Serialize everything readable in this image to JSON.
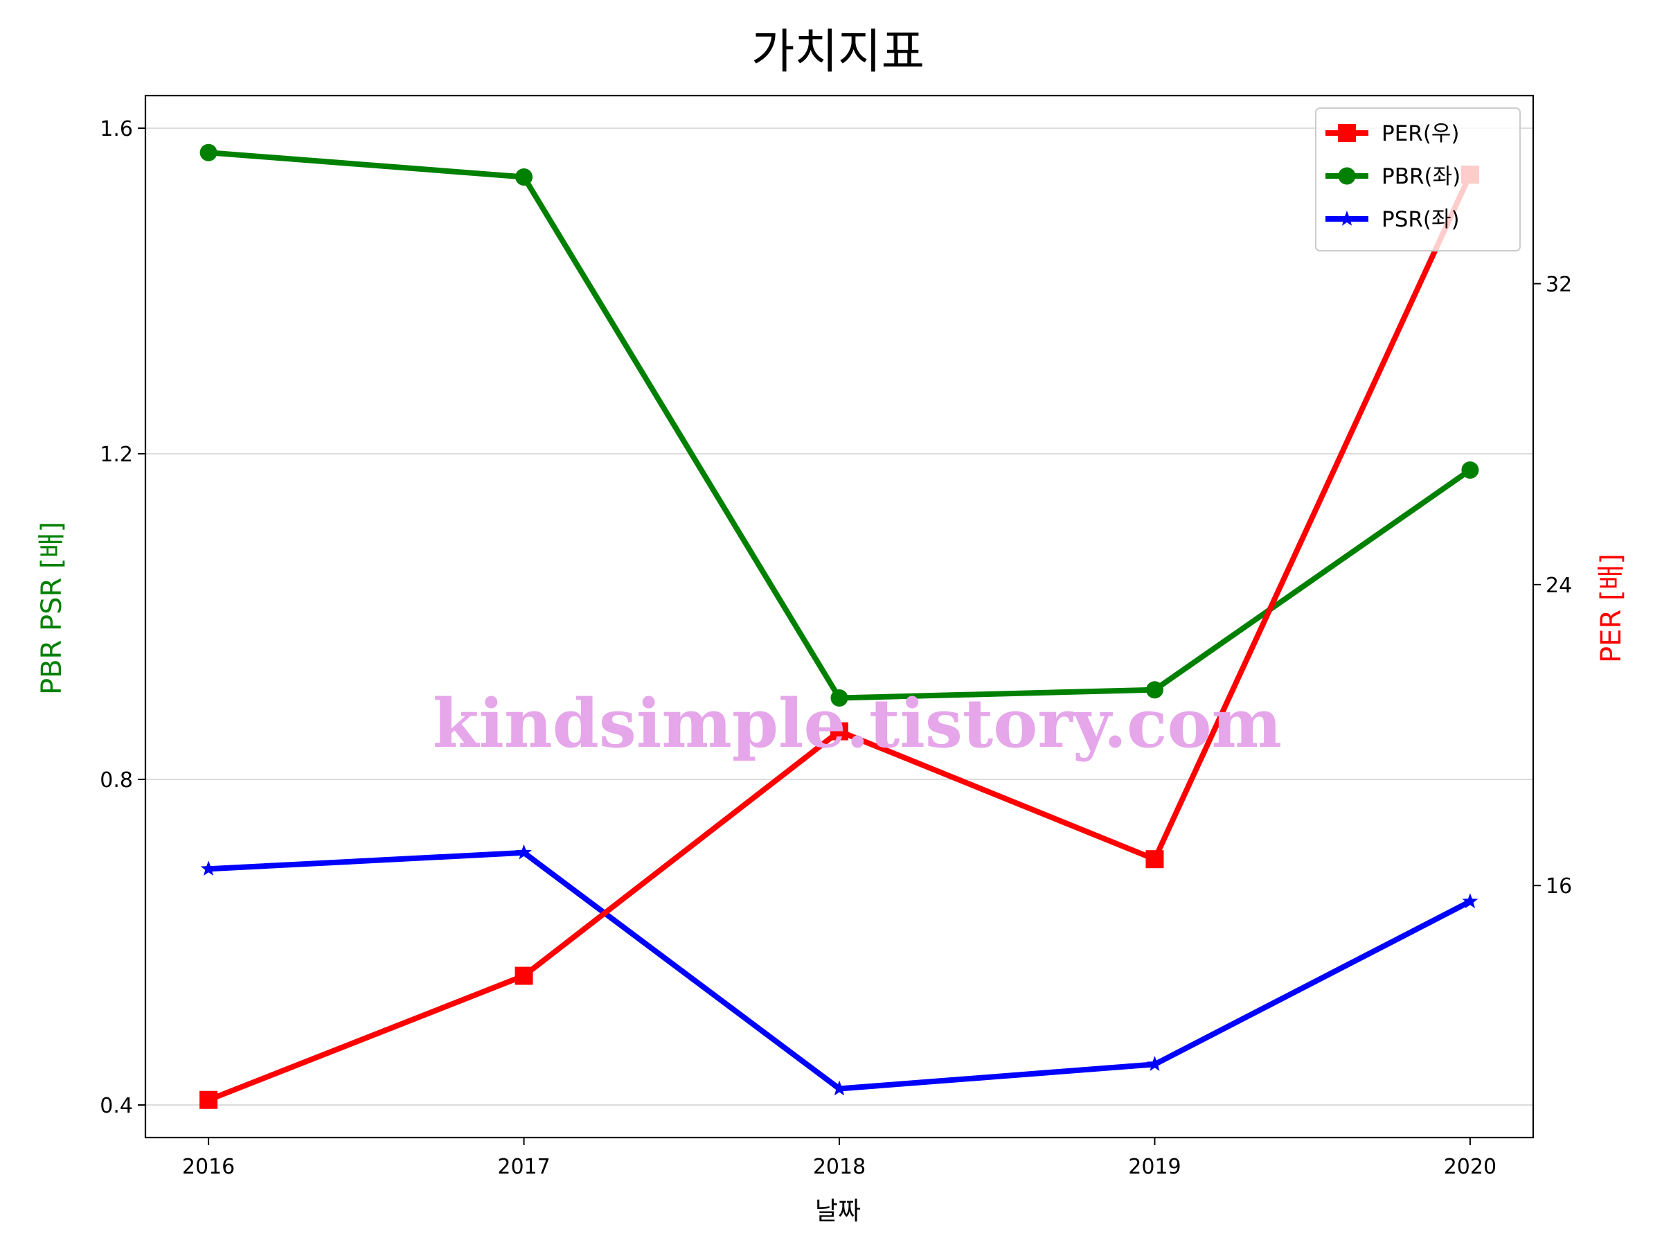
{
  "chart_data": {
    "type": "line",
    "title": "가치지표",
    "xlabel": "날짜",
    "ylabel_left": "PBR PSR [배]",
    "ylabel_right": "PER [배]",
    "x": [
      2016,
      2017,
      2018,
      2019,
      2020
    ],
    "x_ticks": [
      "2016",
      "2017",
      "2018",
      "2019",
      "2020"
    ],
    "xlim": [
      2015.8,
      2020.2
    ],
    "ylim_left": [
      0.36,
      1.64
    ],
    "ylim_right": [
      9.3,
      37.0
    ],
    "y_ticks_left": [
      "0.4",
      "0.8",
      "1.2",
      "1.6"
    ],
    "y_ticks_left_values": [
      0.4,
      0.8,
      1.2,
      1.6
    ],
    "y_ticks_right": [
      "16",
      "24",
      "32"
    ],
    "y_ticks_right_values": [
      16,
      24,
      32
    ],
    "grid": "horizontal",
    "legend_position": "top-right",
    "series": [
      {
        "name": "PER(우)",
        "axis": "right",
        "color": "#ff0000",
        "marker": "square",
        "values": [
          10.3,
          13.6,
          20.1,
          16.7,
          34.9
        ]
      },
      {
        "name": "PBR(좌)",
        "axis": "left",
        "color": "#008000",
        "marker": "circle",
        "values": [
          1.57,
          1.54,
          0.9,
          0.91,
          1.18
        ]
      },
      {
        "name": "PSR(좌)",
        "axis": "left",
        "color": "#0000ff",
        "marker": "star",
        "values": [
          0.69,
          0.71,
          0.42,
          0.45,
          0.65
        ]
      }
    ],
    "watermark": "kindsimple.tistory.com"
  }
}
